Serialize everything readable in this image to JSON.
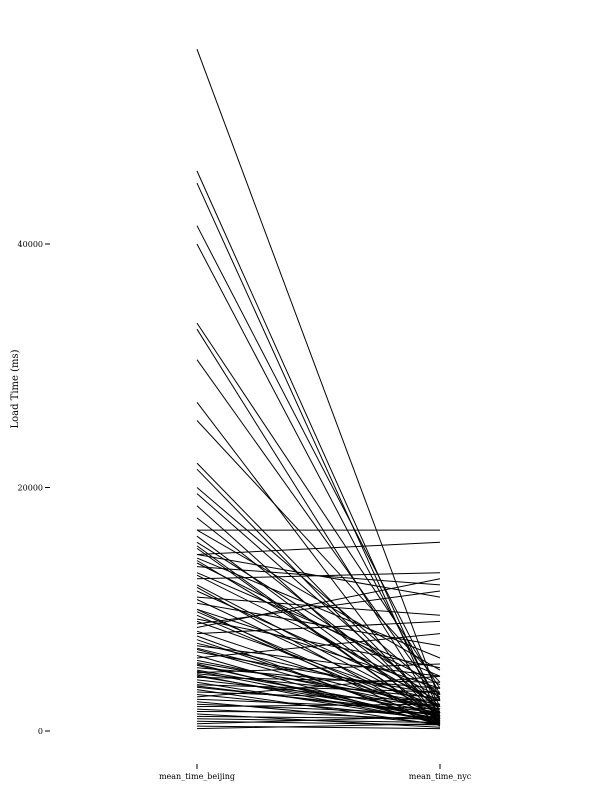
{
  "chart_data": {
    "type": "line",
    "subtype": "slope",
    "categories": [
      "mean_time_beijing",
      "mean_time_nyc"
    ],
    "ylabel": "Load Time (ms)",
    "ylim": [
      0,
      56000
    ],
    "yticks": [
      0,
      20000,
      40000
    ],
    "grid": false,
    "line_color": "#000000",
    "pairs": [
      [
        56000,
        2500
      ],
      [
        46000,
        1500
      ],
      [
        45000,
        1000
      ],
      [
        41500,
        3000
      ],
      [
        40000,
        2000
      ],
      [
        33500,
        3500
      ],
      [
        33000,
        1200
      ],
      [
        30500,
        2500
      ],
      [
        27000,
        800
      ],
      [
        25500,
        4000
      ],
      [
        22000,
        1500
      ],
      [
        21500,
        1000
      ],
      [
        20000,
        3000
      ],
      [
        19500,
        2000
      ],
      [
        18500,
        600
      ],
      [
        17500,
        1800
      ],
      [
        16500,
        16500
      ],
      [
        16500,
        5000
      ],
      [
        16000,
        1200
      ],
      [
        15500,
        3000
      ],
      [
        15000,
        800
      ],
      [
        14500,
        15500
      ],
      [
        14500,
        11000
      ],
      [
        14200,
        6000
      ],
      [
        14000,
        2000
      ],
      [
        13500,
        12000
      ],
      [
        13000,
        4500
      ],
      [
        12500,
        13000
      ],
      [
        12000,
        1500
      ],
      [
        11500,
        2500
      ],
      [
        11000,
        9500
      ],
      [
        10500,
        7000
      ],
      [
        10000,
        400
      ],
      [
        10000,
        3500
      ],
      [
        9500,
        1000
      ],
      [
        9200,
        5200
      ],
      [
        9000,
        2000
      ],
      [
        8500,
        12500
      ],
      [
        8200,
        1500
      ],
      [
        8000,
        9000
      ],
      [
        7500,
        700
      ],
      [
        7200,
        2500
      ],
      [
        7000,
        4500
      ],
      [
        6700,
        1200
      ],
      [
        6500,
        3000
      ],
      [
        6200,
        500
      ],
      [
        6000,
        8000
      ],
      [
        5800,
        1800
      ],
      [
        5600,
        2200
      ],
      [
        5400,
        900
      ],
      [
        5200,
        3500
      ],
      [
        5000,
        1500
      ],
      [
        4900,
        1000
      ],
      [
        4800,
        5500
      ],
      [
        4700,
        2700
      ],
      [
        4600,
        700
      ],
      [
        4500,
        1200
      ],
      [
        4400,
        4000
      ],
      [
        4200,
        2000
      ],
      [
        4000,
        800
      ],
      [
        3800,
        3200
      ],
      [
        3600,
        1500
      ],
      [
        3400,
        500
      ],
      [
        3200,
        2500
      ],
      [
        3000,
        1000
      ],
      [
        2800,
        4500
      ],
      [
        2600,
        1800
      ],
      [
        2400,
        600
      ],
      [
        2200,
        1400
      ],
      [
        2000,
        2200
      ],
      [
        1800,
        900
      ],
      [
        1600,
        1500
      ],
      [
        1400,
        300
      ],
      [
        1200,
        1000
      ],
      [
        1000,
        700
      ],
      [
        800,
        500
      ],
      [
        600,
        1200
      ],
      [
        400,
        200
      ],
      [
        200,
        600
      ],
      [
        9800,
        1200
      ],
      [
        12800,
        2800
      ],
      [
        15200,
        800
      ],
      [
        11800,
        700
      ],
      [
        13800,
        3800
      ],
      [
        10800,
        1500
      ],
      [
        8800,
        11500
      ],
      [
        7800,
        500
      ],
      [
        6800,
        1800
      ],
      [
        5500,
        600
      ],
      [
        3700,
        1300
      ]
    ]
  }
}
